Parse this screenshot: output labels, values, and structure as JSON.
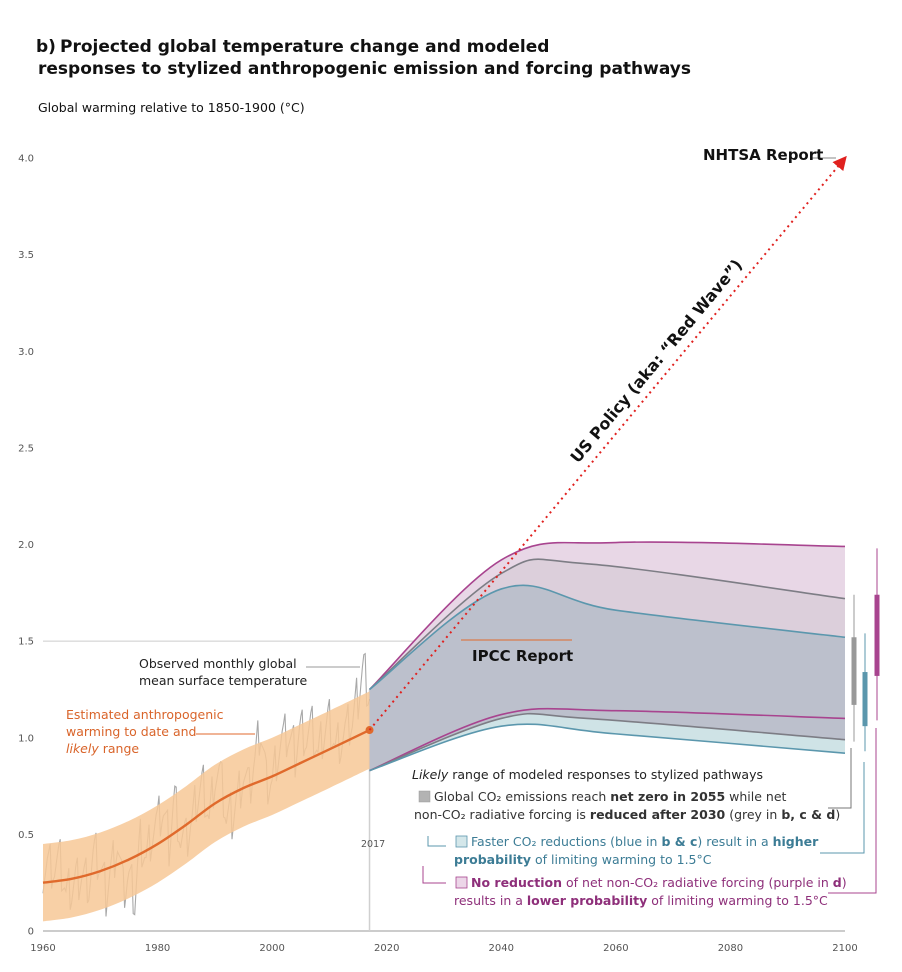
{
  "chart_data": {
    "type": "line",
    "panel_label": "b)",
    "title_line1": "Projected global temperature change and modeled",
    "title_line2": "responses to stylized anthropogenic emission and forcing pathways",
    "ylabel": "Global warming relative to 1850-1900 (°C)",
    "xlim": [
      1960,
      2100
    ],
    "ylim": [
      0,
      4.0
    ],
    "x_ticks": [
      1960,
      1980,
      2000,
      2020,
      2040,
      2060,
      2080,
      2100
    ],
    "y_ticks": [
      0,
      0.5,
      1.0,
      1.5,
      2.0,
      2.5,
      3.0,
      3.5,
      4.0
    ],
    "y_tick_labels": [
      "0",
      "0.5",
      "1.0",
      "1.5",
      "2.0",
      "2.5",
      "3.0",
      "3.5",
      "4.0"
    ],
    "reference_line_y": 1.5,
    "year_marker": {
      "x": 2017,
      "label": "2017"
    },
    "colors": {
      "observed": "#a8a8a8",
      "anthro": "#e06a2c",
      "anthro_band": "#f7c896",
      "grey_band": "#bcc0cc",
      "blue": "#5b97ad",
      "purple": "#a8448f",
      "purple_fill": "#e8d7e6",
      "blue_fill": "#cfe3e6",
      "red_arrow": "#e0211f",
      "pathway_title": "#222222",
      "bar_grey": "#999999"
    },
    "anthropogenic_estimate": {
      "x": [
        1960,
        1965,
        1970,
        1975,
        1980,
        1985,
        1990,
        1995,
        2000,
        2005,
        2010,
        2017
      ],
      "y": [
        0.25,
        0.27,
        0.31,
        0.37,
        0.45,
        0.55,
        0.66,
        0.74,
        0.8,
        0.87,
        0.94,
        1.04
      ],
      "likely_range_halfwidth": 0.2
    },
    "observed_monthly": {
      "x": [
        1960,
        1961,
        1962,
        1963,
        1964,
        1965,
        1966,
        1967,
        1968,
        1969,
        1970,
        1971,
        1972,
        1973,
        1974,
        1975,
        1976,
        1977,
        1978,
        1979,
        1980,
        1981,
        1982,
        1983,
        1984,
        1985,
        1986,
        1987,
        1988,
        1989,
        1990,
        1991,
        1992,
        1993,
        1994,
        1995,
        1996,
        1997,
        1998,
        1999,
        2000,
        2001,
        2002,
        2003,
        2004,
        2005,
        2006,
        2007,
        2008,
        2009,
        2010,
        2011,
        2012,
        2013,
        2014,
        2015,
        2016,
        2017
      ],
      "y": [
        0.32,
        0.36,
        0.33,
        0.35,
        0.18,
        0.22,
        0.28,
        0.3,
        0.26,
        0.4,
        0.33,
        0.2,
        0.34,
        0.46,
        0.2,
        0.28,
        0.16,
        0.48,
        0.38,
        0.52,
        0.56,
        0.62,
        0.46,
        0.7,
        0.48,
        0.46,
        0.56,
        0.7,
        0.76,
        0.58,
        0.82,
        0.8,
        0.58,
        0.6,
        0.7,
        0.82,
        0.72,
        0.88,
        1.05,
        0.78,
        0.78,
        0.94,
        1.0,
        1.0,
        0.92,
        1.06,
        1.0,
        1.04,
        0.9,
        1.02,
        1.1,
        0.96,
        1.0,
        1.04,
        1.08,
        1.22,
        1.38,
        1.2
      ]
    },
    "projection_bands": [
      {
        "name": "Global CO₂ emissions reach net zero in 2055 (grey)",
        "x": [
          2017,
          2040,
          2055,
          2100
        ],
        "upper": [
          1.25,
          1.85,
          1.9,
          1.72
        ],
        "lower": [
          0.83,
          1.1,
          1.1,
          0.99
        ]
      },
      {
        "name": "Faster CO₂ reductions (blue)",
        "x": [
          2017,
          2040,
          2060,
          2100
        ],
        "upper": [
          1.25,
          1.77,
          1.66,
          1.52
        ],
        "lower": [
          0.83,
          1.06,
          1.02,
          0.92
        ]
      },
      {
        "name": "No reduction of net non-CO₂ radiative forcing (purple)",
        "x": [
          2017,
          2040,
          2060,
          2100
        ],
        "upper": [
          1.25,
          1.92,
          2.01,
          1.99
        ],
        "lower": [
          0.83,
          1.12,
          1.14,
          1.1
        ]
      }
    ],
    "range_bars_2100": [
      {
        "name": "grey",
        "low": 1.17,
        "high": 1.52,
        "whisker_low": 0.98,
        "whisker_high": 1.74
      },
      {
        "name": "blue",
        "low": 1.06,
        "high": 1.34,
        "whisker_low": 0.93,
        "whisker_high": 1.54
      },
      {
        "name": "purple",
        "low": 1.32,
        "high": 1.74,
        "whisker_low": 1.09,
        "whisker_high": 1.98
      }
    ],
    "red_arrow": {
      "from": [
        2017,
        1.04
      ],
      "to": [
        2100,
        4.0
      ],
      "label": "US Policy (aka: “Red Wave”)"
    },
    "annotations": {
      "nhtsa": "NHTSA Report",
      "ipcc": "IPCC Report",
      "observed_line1": "Observed monthly global",
      "observed_line2": "mean surface temperature",
      "anthro_line1": "Estimated anthropogenic",
      "anthro_line2": "warming to date and",
      "anthro_line3_italic": "likely",
      "anthro_line3_rest": " range",
      "pathway_title_italic": "Likely",
      "pathway_title_rest": " range of modeled responses to stylized pathways",
      "grey_l1_a": "Global CO₂ emissions reach ",
      "grey_l1_b": "net zero in 2055",
      "grey_l1_c": " while net",
      "grey_l2_a": "non-CO₂ radiative forcing is ",
      "grey_l2_b": "reduced after 2030",
      "grey_l2_c": " (grey in ",
      "grey_l2_d": "b, c & d",
      "grey_l2_e": ")",
      "blue_l1_a": "Faster CO₂ reductions (blue in ",
      "blue_l1_b": "b & c",
      "blue_l1_c": ") result in a ",
      "blue_l1_d": "higher",
      "blue_l2_a": "probability",
      "blue_l2_b": " of limiting warming to 1.5°C",
      "purple_l1_a": "No reduction",
      "purple_l1_b": " of net non-CO₂ radiative forcing (purple in ",
      "purple_l1_c": "d",
      "purple_l1_d": ")",
      "purple_l2_a": "results in a ",
      "purple_l2_b": "lower probability",
      "purple_l2_c": " of limiting warming to 1.5°C"
    }
  }
}
